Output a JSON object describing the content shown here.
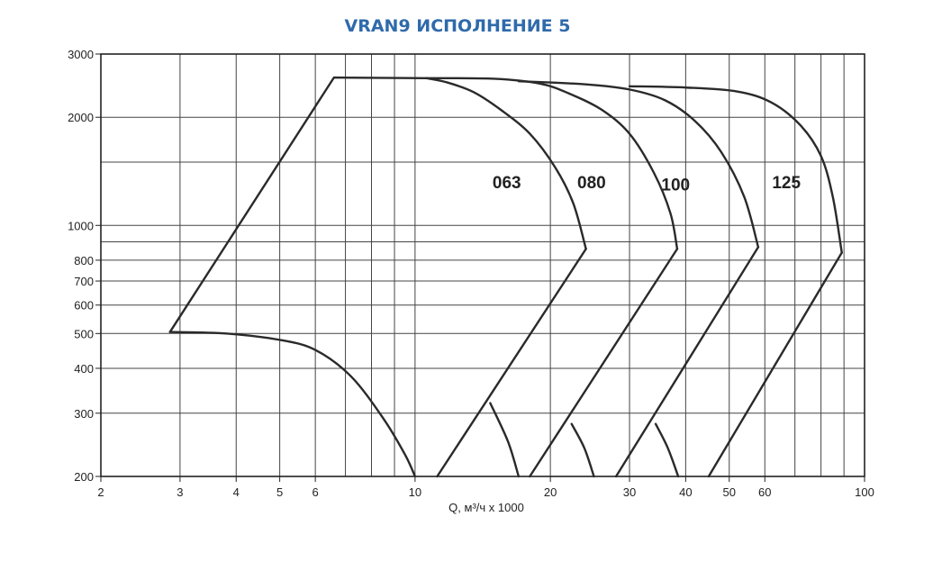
{
  "title": "VRAN9 ИСПОЛНЕНИЕ 5",
  "colors": {
    "title": "#2f6aab",
    "grid": "#444444",
    "curve": "#2a2a2a"
  },
  "chart_data": {
    "type": "line",
    "title": "VRAN9 ИСПОЛНЕНИЕ 5",
    "xlabel": "Q, м³/ч x 1000",
    "ylabel": "",
    "x_scale": "log",
    "y_scale": "log",
    "xlim": [
      2,
      100
    ],
    "ylim": [
      200,
      3000
    ],
    "x_ticks": [
      2,
      3,
      4,
      5,
      6,
      10,
      20,
      30,
      40,
      50,
      60,
      100
    ],
    "x_tick_labels": [
      "2",
      "3",
      "4",
      "5",
      "6",
      "10",
      "20",
      "30",
      "40",
      "50",
      "60",
      "100"
    ],
    "x_grid": [
      2,
      3,
      4,
      5,
      6,
      7,
      8,
      9,
      10,
      20,
      30,
      40,
      50,
      60,
      70,
      80,
      90,
      100
    ],
    "y_ticks": [
      200,
      300,
      400,
      500,
      600,
      700,
      800,
      1000,
      2000,
      3000
    ],
    "y_tick_labels": [
      "200",
      "300",
      "400",
      "500",
      "600",
      "700",
      "800",
      "1000",
      "2000",
      "3000"
    ],
    "y_grid": [
      200,
      300,
      400,
      500,
      600,
      700,
      800,
      900,
      1000,
      1500,
      2000,
      3000
    ],
    "grid": true,
    "series": [
      {
        "name": "063",
        "label_pos": [
          16,
          1270
        ],
        "top": [
          [
            10.6,
            2570
          ],
          [
            11.8,
            2500
          ],
          [
            13.5,
            2350
          ],
          [
            15.5,
            2100
          ],
          [
            18,
            1800
          ],
          [
            20.5,
            1450
          ],
          [
            22.5,
            1150
          ],
          [
            24,
            860
          ]
        ],
        "bottom": [
          [
            24,
            860
          ],
          [
            11.2,
            200
          ]
        ],
        "cross": [
          [
            14.7,
            320
          ],
          [
            16.1,
            250
          ],
          [
            17,
            200
          ]
        ]
      },
      {
        "name": "080",
        "label_pos": [
          24.7,
          1270
        ],
        "top": [
          [
            10.6,
            2570
          ],
          [
            15,
            2560
          ],
          [
            19,
            2480
          ],
          [
            22,
            2330
          ],
          [
            26,
            2100
          ],
          [
            30,
            1800
          ],
          [
            34,
            1400
          ],
          [
            37,
            1080
          ],
          [
            38.3,
            860
          ]
        ],
        "bottom": [
          [
            38.3,
            860
          ],
          [
            18,
            200
          ]
        ],
        "cross": [
          [
            22.3,
            280
          ],
          [
            23.8,
            240
          ],
          [
            25,
            200
          ]
        ]
      },
      {
        "name": "100",
        "label_pos": [
          38,
          1250
        ],
        "top": [
          [
            17,
            2520
          ],
          [
            24,
            2470
          ],
          [
            30,
            2390
          ],
          [
            36,
            2230
          ],
          [
            42,
            1950
          ],
          [
            48,
            1600
          ],
          [
            54,
            1200
          ],
          [
            58,
            870
          ]
        ],
        "bottom": [
          [
            58,
            870
          ],
          [
            28,
            200
          ]
        ],
        "cross": [
          [
            34.3,
            280
          ],
          [
            36.5,
            240
          ],
          [
            38.5,
            200
          ]
        ]
      },
      {
        "name": "125",
        "label_pos": [
          67,
          1270
        ],
        "top": [
          [
            30,
            2440
          ],
          [
            40,
            2420
          ],
          [
            52,
            2360
          ],
          [
            62,
            2200
          ],
          [
            72,
            1900
          ],
          [
            80,
            1560
          ],
          [
            85,
            1200
          ],
          [
            89,
            840
          ]
        ],
        "bottom": [
          [
            89,
            840
          ],
          [
            45,
            200
          ]
        ],
        "cross": []
      }
    ],
    "envelope": [
      [
        2.85,
        505
      ],
      [
        6.6,
        2580
      ],
      [
        10.6,
        2570
      ]
    ],
    "low_curve": [
      [
        2.85,
        505
      ],
      [
        3.8,
        500
      ],
      [
        5,
        480
      ],
      [
        6,
        450
      ],
      [
        7.2,
        380
      ],
      [
        8.5,
        290
      ],
      [
        9.5,
        230
      ],
      [
        10,
        200
      ]
    ]
  }
}
